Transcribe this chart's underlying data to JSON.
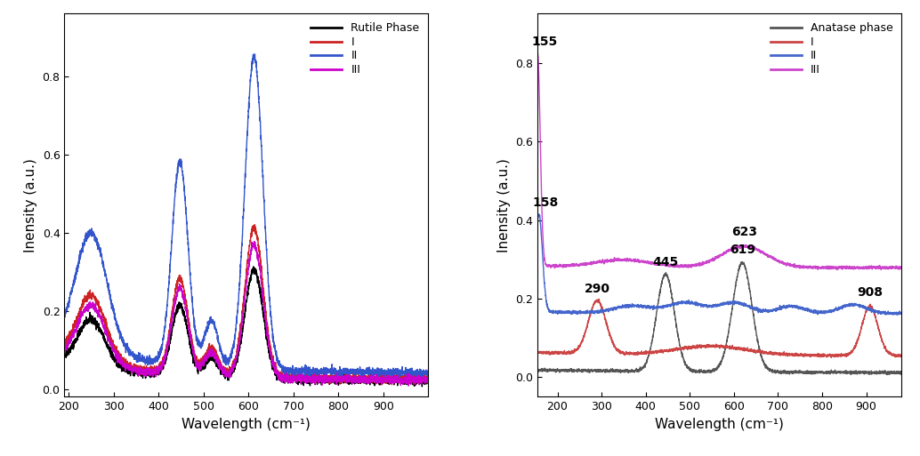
{
  "rutile": {
    "title": "Rutile Phase",
    "xlabel": "Wavelength (cm⁻¹)",
    "ylabel": "Inensity (a.u.)",
    "xmin": 190,
    "xmax": 1000,
    "legend_labels": [
      "I",
      "II",
      "III"
    ],
    "colors_black": "black",
    "colors_red": "#cc2222",
    "colors_blue": "#3355cc",
    "colors_magenta": "#cc00cc"
  },
  "anatase": {
    "title": "Anatase phase",
    "xlabel": "Wavelength (cm⁻¹)",
    "ylabel": "Inensity (a.u.)",
    "xmin": 155,
    "xmax": 980,
    "legend_labels": [
      "I",
      "II",
      "III"
    ],
    "colors_black": "#555555",
    "colors_red": "#cc4444",
    "colors_blue": "#4466cc",
    "colors_magenta": "#cc44cc",
    "ann_black": [
      [
        "445",
        445
      ],
      [
        "619",
        619
      ]
    ],
    "ann_red": [
      [
        "290",
        290
      ],
      [
        "908",
        908
      ]
    ],
    "ann_blue": [
      [
        "158",
        158
      ]
    ],
    "ann_magenta": [
      [
        "155",
        155
      ],
      [
        "623",
        623
      ]
    ]
  }
}
